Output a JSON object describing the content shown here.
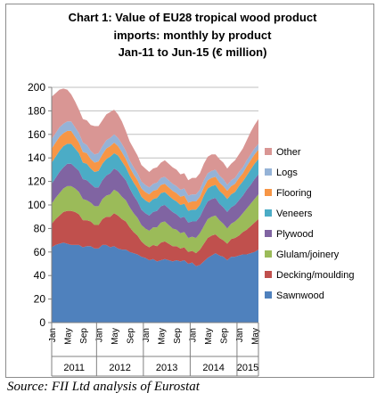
{
  "title_lines": [
    "Chart 1: Value of EU28 tropical wood product",
    "imports: monthly by product",
    "Jan-11 to Jun-15 (€ million)"
  ],
  "source": "Source: FII Ltd analysis of Eurostat",
  "chart_data": {
    "type": "area",
    "stacked": true,
    "title": "Chart 1: Value of EU28 tropical wood product imports: monthly by product Jan-11 to Jun-15 (€ million)",
    "ylim": [
      0,
      200
    ],
    "yticks": [
      0,
      20,
      40,
      60,
      80,
      100,
      120,
      140,
      160,
      180,
      200
    ],
    "grid": true,
    "legend_position": "right",
    "x": [
      "Jan-11",
      "Feb-11",
      "Mar-11",
      "Apr-11",
      "May-11",
      "Jun-11",
      "Jul-11",
      "Aug-11",
      "Sep-11",
      "Oct-11",
      "Nov-11",
      "Dec-11",
      "Jan-12",
      "Feb-12",
      "Mar-12",
      "Apr-12",
      "May-12",
      "Jun-12",
      "Jul-12",
      "Aug-12",
      "Sep-12",
      "Oct-12",
      "Nov-12",
      "Dec-12",
      "Jan-13",
      "Feb-13",
      "Mar-13",
      "Apr-13",
      "May-13",
      "Jun-13",
      "Jul-13",
      "Aug-13",
      "Sep-13",
      "Oct-13",
      "Nov-13",
      "Dec-13",
      "Jan-14",
      "Feb-14",
      "Mar-14",
      "Apr-14",
      "May-14",
      "Jun-14",
      "Jul-14",
      "Aug-14",
      "Sep-14",
      "Oct-14",
      "Nov-14",
      "Dec-14",
      "Jan-15",
      "Feb-15",
      "Mar-15",
      "Apr-15",
      "May-15",
      "Jun-15"
    ],
    "month_tick_labels": [
      "Jan",
      "May",
      "Sep",
      "Jan",
      "May",
      "Sep",
      "Jan",
      "May",
      "Sep",
      "Jan",
      "May",
      "Sep",
      "Jan",
      "May"
    ],
    "month_tick_index": [
      0,
      4,
      8,
      12,
      16,
      20,
      24,
      28,
      32,
      36,
      40,
      44,
      48,
      52
    ],
    "year_groups": [
      {
        "label": "2011",
        "start": 0,
        "end": 11
      },
      {
        "label": "2012",
        "start": 12,
        "end": 23
      },
      {
        "label": "2013",
        "start": 24,
        "end": 35
      },
      {
        "label": "2014",
        "start": 36,
        "end": 47
      },
      {
        "label": "2015",
        "start": 48,
        "end": 53
      }
    ],
    "series": [
      {
        "name": "Sawnwood",
        "color": "#4f81bd",
        "values": [
          64,
          66,
          67,
          68,
          67,
          66,
          66,
          66,
          64,
          65,
          65,
          63,
          63,
          66,
          66,
          64,
          65,
          63,
          62,
          62,
          60,
          59,
          58,
          56,
          55,
          53,
          54,
          52,
          53,
          54,
          53,
          52,
          53,
          52,
          53,
          50,
          51,
          48,
          49,
          52,
          55,
          57,
          59,
          57,
          56,
          53,
          56,
          56,
          57,
          58,
          58,
          59,
          60,
          62
        ]
      },
      {
        "name": "Decking/moulding",
        "color": "#c0504d",
        "values": [
          20,
          22,
          24,
          26,
          28,
          29,
          28,
          26,
          23,
          22,
          21,
          20,
          20,
          22,
          24,
          26,
          28,
          28,
          26,
          24,
          21,
          18,
          16,
          13,
          11,
          11,
          12,
          13,
          15,
          15,
          14,
          13,
          12,
          11,
          11,
          10,
          10,
          11,
          13,
          15,
          17,
          17,
          16,
          15,
          14,
          14,
          15,
          16,
          17,
          19,
          21,
          23,
          25,
          26
        ]
      },
      {
        "name": "Glulam/joinery",
        "color": "#9bbb59",
        "values": [
          17,
          18,
          19,
          20,
          21,
          21,
          20,
          19,
          18,
          17,
          16,
          16,
          16,
          17,
          18,
          19,
          20,
          20,
          19,
          18,
          17,
          16,
          15,
          14,
          14,
          14,
          15,
          16,
          17,
          17,
          16,
          15,
          14,
          13,
          13,
          12,
          12,
          13,
          14,
          15,
          16,
          16,
          16,
          15,
          14,
          13,
          13,
          14,
          15,
          16,
          18,
          19,
          20,
          21
        ]
      },
      {
        "name": "Plywood",
        "color": "#8064a2",
        "values": [
          17,
          17,
          18,
          18,
          19,
          19,
          18,
          18,
          17,
          17,
          16,
          16,
          16,
          16,
          17,
          18,
          18,
          18,
          18,
          17,
          16,
          15,
          14,
          13,
          13,
          13,
          13,
          14,
          14,
          14,
          14,
          14,
          13,
          13,
          13,
          13,
          13,
          14,
          14,
          15,
          15,
          15,
          15,
          14,
          14,
          14,
          14,
          14,
          15,
          15,
          16,
          16,
          17,
          17
        ]
      },
      {
        "name": "Veneers",
        "color": "#4bacc6",
        "values": [
          18,
          18,
          18,
          18,
          17,
          17,
          16,
          15,
          14,
          14,
          13,
          13,
          14,
          14,
          14,
          14,
          13,
          13,
          12,
          11,
          11,
          11,
          11,
          11,
          11,
          11,
          11,
          11,
          11,
          11,
          11,
          11,
          11,
          11,
          11,
          10,
          10,
          10,
          10,
          11,
          11,
          11,
          11,
          11,
          11,
          11,
          11,
          11,
          12,
          12,
          12,
          13,
          13,
          13
        ]
      },
      {
        "name": "Flooring",
        "color": "#f79646",
        "values": [
          12,
          12,
          12,
          11,
          11,
          11,
          10,
          9,
          9,
          9,
          8,
          8,
          8,
          8,
          9,
          9,
          9,
          8,
          8,
          7,
          7,
          7,
          7,
          7,
          7,
          7,
          7,
          7,
          7,
          7,
          7,
          7,
          7,
          7,
          7,
          7,
          7,
          7,
          7,
          7,
          7,
          7,
          7,
          7,
          7,
          7,
          7,
          7,
          7,
          7,
          8,
          8,
          8,
          8
        ]
      },
      {
        "name": "Logs",
        "color": "#95b3d7",
        "values": [
          8,
          8,
          8,
          8,
          8,
          8,
          8,
          8,
          8,
          7,
          7,
          7,
          7,
          7,
          7,
          7,
          7,
          7,
          7,
          7,
          6,
          6,
          6,
          6,
          6,
          6,
          6,
          6,
          6,
          6,
          6,
          6,
          6,
          6,
          6,
          6,
          6,
          6,
          6,
          6,
          6,
          6,
          6,
          6,
          6,
          5,
          5,
          5,
          5,
          5,
          5,
          5,
          5,
          5
        ]
      },
      {
        "name": "Other",
        "color": "#d99694",
        "values": [
          36,
          34,
          32,
          30,
          27,
          23,
          22,
          20,
          20,
          21,
          22,
          24,
          23,
          22,
          22,
          22,
          21,
          20,
          19,
          17,
          16,
          16,
          15,
          14,
          14,
          13,
          13,
          13,
          13,
          14,
          14,
          14,
          14,
          13,
          13,
          13,
          14,
          14,
          14,
          14,
          14,
          14,
          13,
          14,
          14,
          14,
          14,
          15,
          15,
          16,
          17,
          19,
          20,
          21
        ]
      }
    ]
  }
}
